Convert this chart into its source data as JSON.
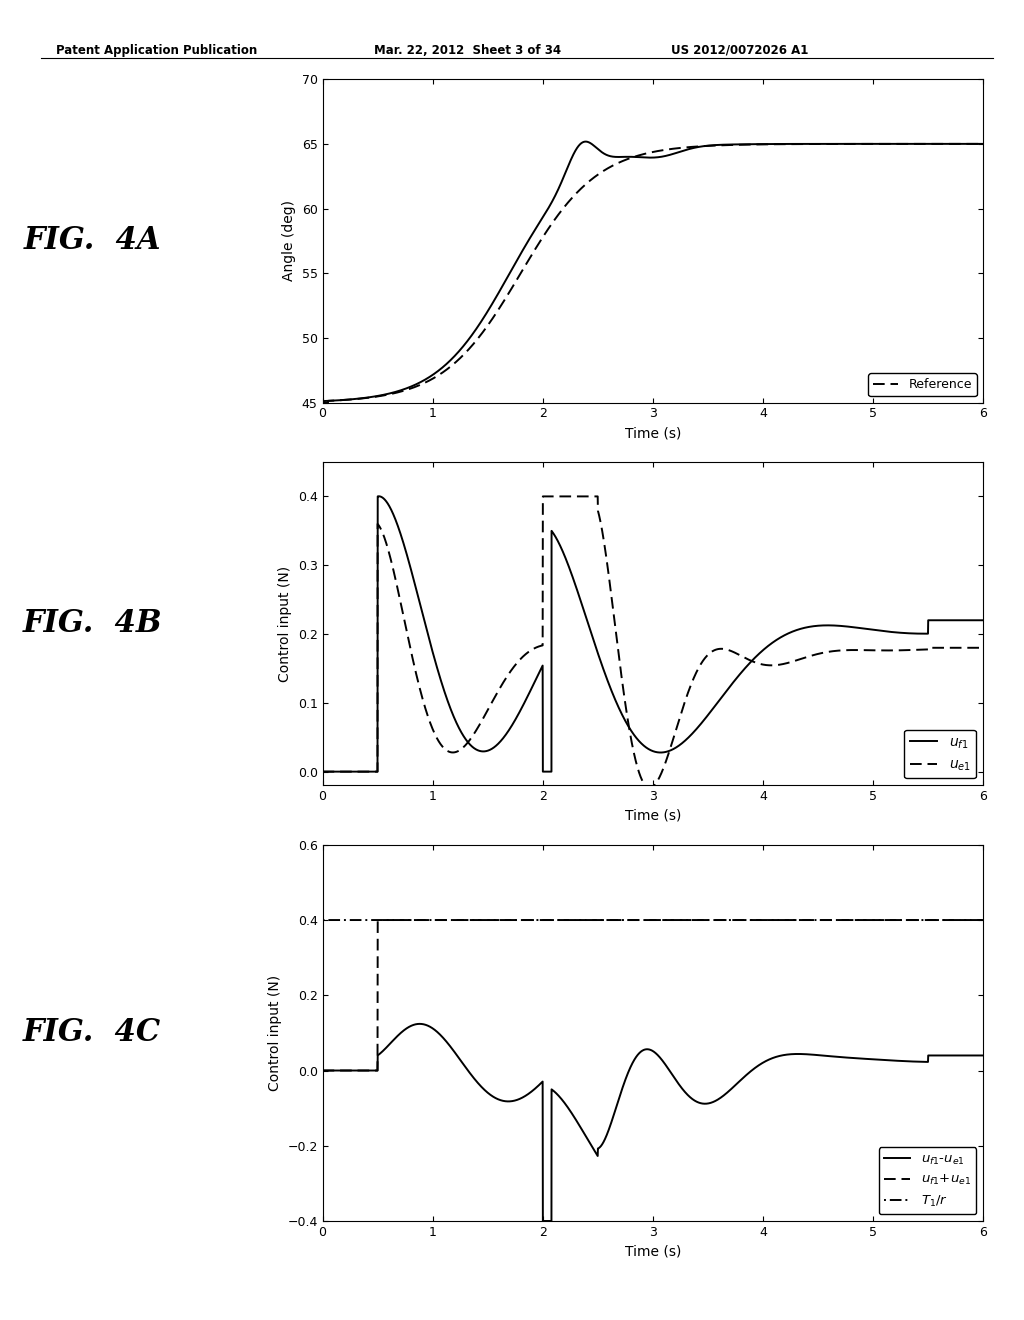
{
  "header_left": "Patent Application Publication",
  "header_mid": "Mar. 22, 2012  Sheet 3 of 34",
  "header_right": "US 2012/0072026 A1",
  "fig_label_A": "FIG.  4A",
  "fig_label_B": "FIG.  4B",
  "fig_label_C": "FIG.  4C",
  "plot_A": {
    "ylabel": "Angle (deg)",
    "xlabel": "Time (s)",
    "xlim": [
      0,
      6
    ],
    "ylim": [
      45,
      70
    ],
    "yticks": [
      45,
      50,
      55,
      60,
      65,
      70
    ],
    "xticks": [
      0,
      1,
      2,
      3,
      4,
      5,
      6
    ]
  },
  "plot_B": {
    "ylabel": "Control input (N)",
    "xlabel": "Time (s)",
    "xlim": [
      0,
      6
    ],
    "ylim": [
      -0.02,
      0.45
    ],
    "yticks": [
      0,
      0.1,
      0.2,
      0.3,
      0.4
    ],
    "xticks": [
      0,
      1,
      2,
      3,
      4,
      5,
      6
    ]
  },
  "plot_C": {
    "ylabel": "Control input (N)",
    "xlabel": "Time (s)",
    "xlim": [
      0,
      6
    ],
    "ylim": [
      -0.4,
      0.6
    ],
    "yticks": [
      -0.4,
      -0.2,
      0,
      0.2,
      0.4,
      0.6
    ],
    "xticks": [
      0,
      1,
      2,
      3,
      4,
      5,
      6
    ]
  }
}
